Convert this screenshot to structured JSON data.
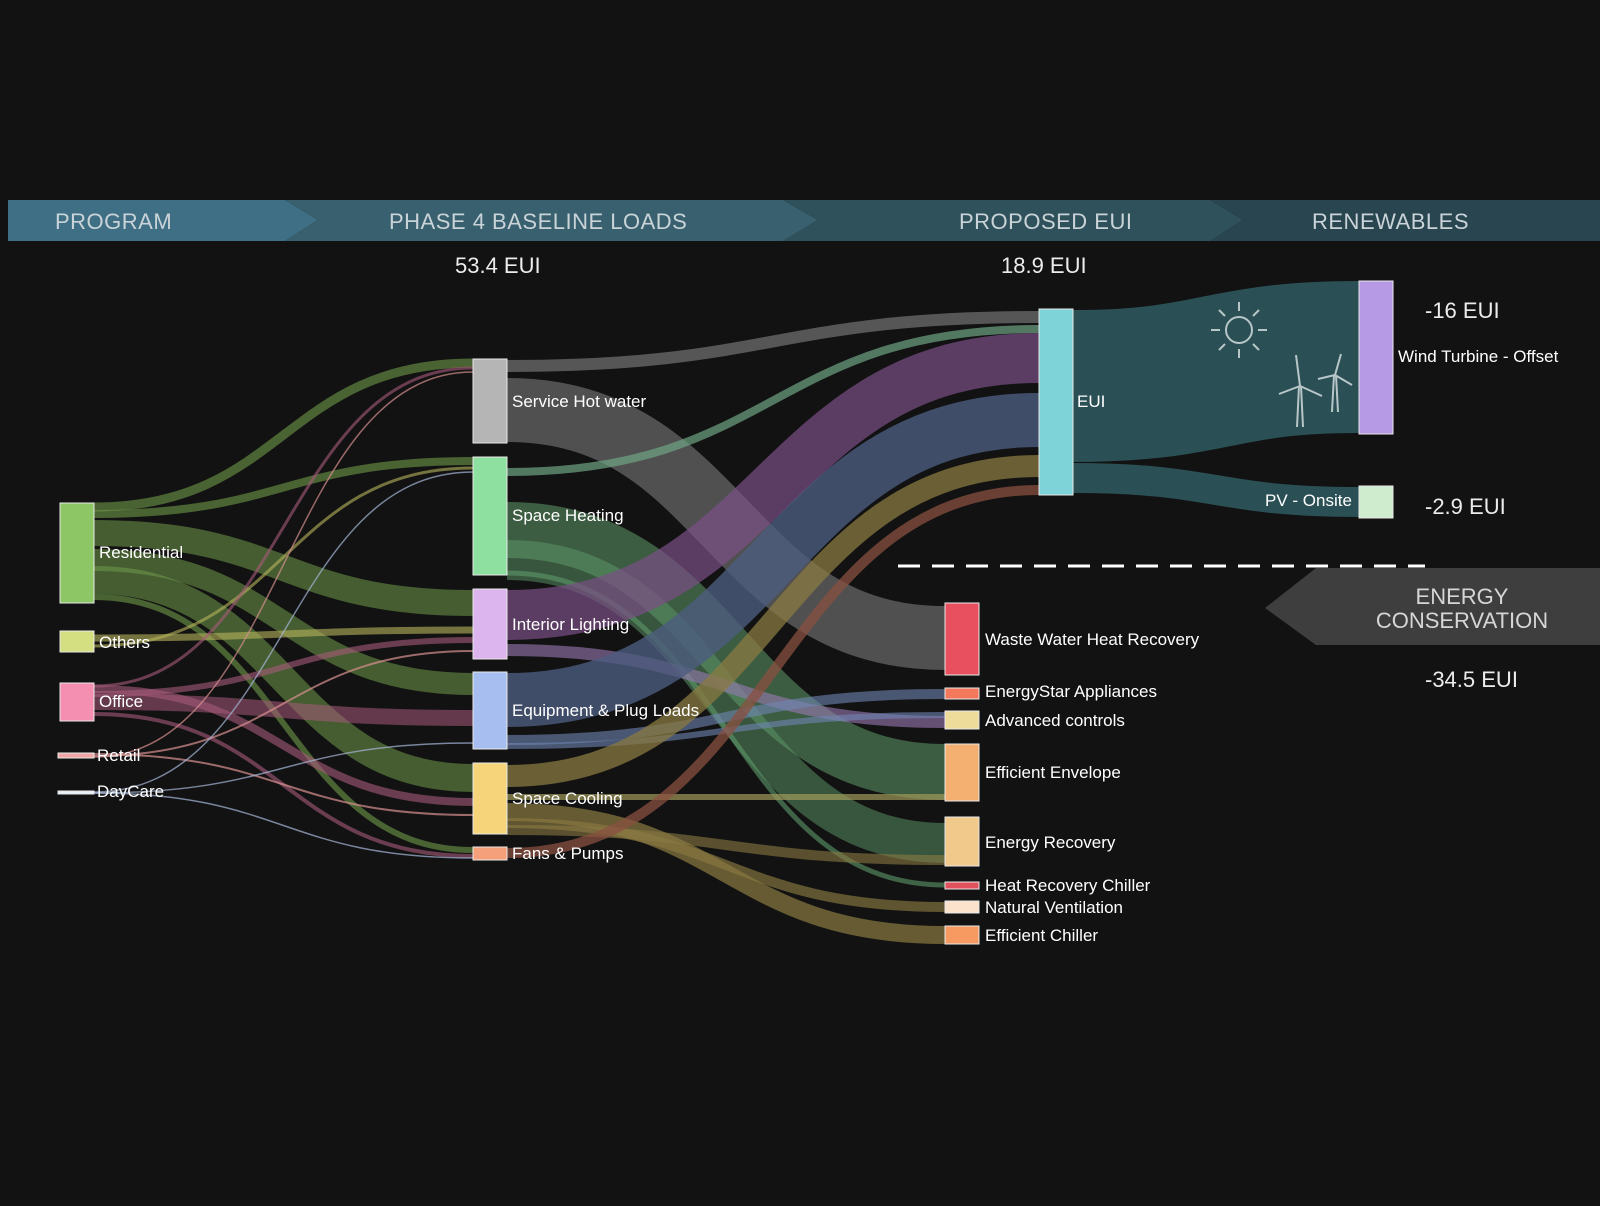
{
  "headers": {
    "program": "PROGRAM",
    "baseline": "PHASE 4 BASELINE LOADS",
    "proposed": "PROPOSED EUI",
    "renewables": "RENEWABLES"
  },
  "totals": {
    "baseline": "53.4 EUI",
    "proposed": "18.9 EUI",
    "wind": "-16 EUI",
    "pv": "-2.9 EUI",
    "conservation": "-34.5 EUI"
  },
  "conservation_banner": {
    "line1": "ENERGY",
    "line2": "CONSERVATION"
  },
  "nodes": {
    "residential": "Residential",
    "others": "Others",
    "office": "Office",
    "retail": "Retail",
    "daycare": "DayCare",
    "service_hot_water": "Service Hot water",
    "space_heating": "Space Heating",
    "interior_lighting": "Interior Lighting",
    "equipment_plug": "Equipment & Plug Loads",
    "space_cooling": "Space Cooling",
    "fans_pumps": "Fans & Pumps",
    "eui": "EUI",
    "wind": "Wind Turbine - Offset",
    "pv": "PV - Onsite",
    "waste_water": "Waste Water Heat Recovery",
    "energystar": "EnergyStar Appliances",
    "advanced_controls": "Advanced controls",
    "efficient_envelope": "Efficient Envelope",
    "energy_recovery": "Energy Recovery",
    "heat_recovery_chiller": "Heat Recovery Chiller",
    "natural_ventilation": "Natural Ventilation",
    "efficient_chiller": "Efficient Chiller"
  },
  "icons": [
    "sun-icon",
    "wind-turbine-icon"
  ],
  "colors": {
    "residential": "#8cc665",
    "others": "#d3df80",
    "office": "#f48fb1",
    "retail": "#f4a6a6",
    "daycare": "#e8f0f8",
    "service_hot_water": "#b5b5b5",
    "space_heating": "#8ee0a0",
    "interior_lighting": "#dcb4ee",
    "equipment_plug": "#a6bff0",
    "space_cooling": "#f6d47a",
    "fans_pumps": "#f5a07a",
    "eui": "#7dd3d8",
    "wind": "#b69ae6",
    "pv": "#cfeccf",
    "waste_water": "#e9505f",
    "energystar": "#f4795c",
    "advanced_controls": "#eedc9a",
    "efficient_envelope": "#f3b070",
    "energy_recovery": "#f1c98a",
    "heat_recovery_chiller": "#e2525c",
    "natural_ventilation": "#fbe2cc",
    "efficient_chiller": "#f69a62"
  }
}
